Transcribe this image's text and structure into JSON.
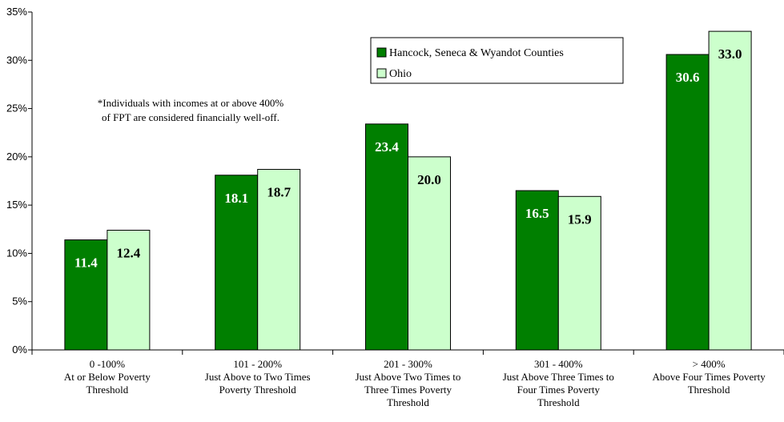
{
  "chart_data": {
    "type": "bar",
    "categories": [
      [
        "0 -100%",
        "At or Below Poverty",
        "Threshold"
      ],
      [
        "101 - 200%",
        "Just Above to Two Times",
        "Poverty Threshold"
      ],
      [
        "201 - 300%",
        "Just Above Two Times to",
        "Three Times Poverty",
        "Threshold"
      ],
      [
        "301 - 400%",
        "Just Above Three Times to",
        "Four Times Poverty",
        "Threshold"
      ],
      [
        "> 400%",
        "Above Four Times Poverty",
        "Threshold"
      ]
    ],
    "series": [
      {
        "name": "Hancock, Seneca & Wyandot Counties",
        "values": [
          11.4,
          18.1,
          23.4,
          16.5,
          30.6
        ],
        "color": "#007f00",
        "label_color": "#ffffff"
      },
      {
        "name": "Ohio",
        "values": [
          12.4,
          18.7,
          20.0,
          15.9,
          33.0
        ],
        "color": "#ccffcc",
        "label_color": "#000000"
      }
    ],
    "yticks": [
      "0%",
      "5%",
      "10%",
      "15%",
      "20%",
      "25%",
      "30%",
      "35%"
    ],
    "ylim": [
      0,
      35
    ],
    "legend_position": "top-right",
    "grid": false,
    "annotation": [
      "*Individuals with incomes at or above 400%",
      "of FPT are considered financially well-off."
    ]
  }
}
